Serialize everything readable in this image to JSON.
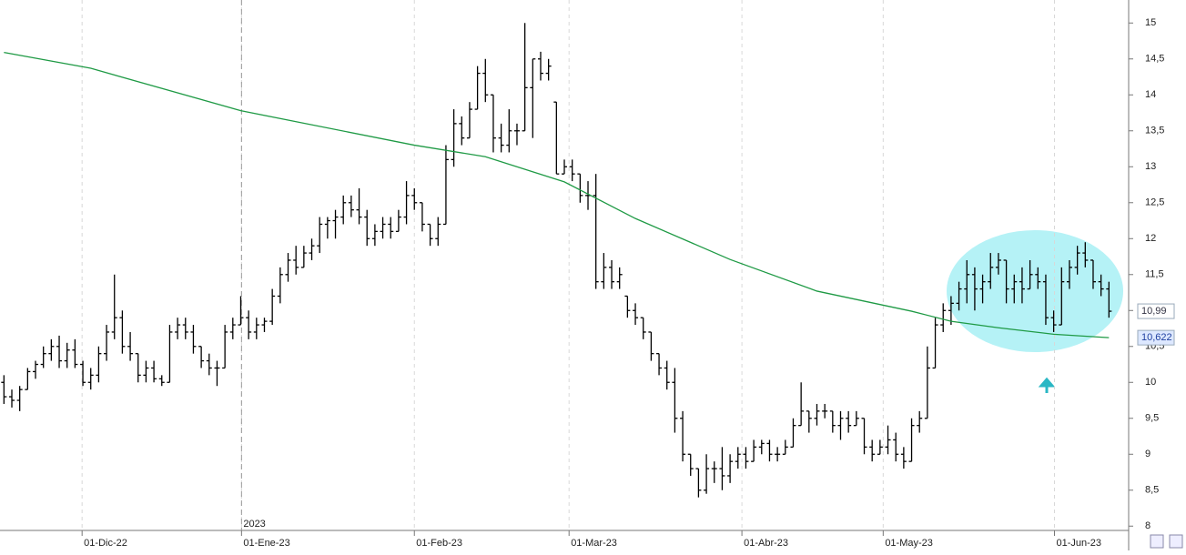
{
  "chart_data": {
    "type": "ohlc",
    "color": "#000000",
    "open": [
      10.0,
      9.8,
      9.75,
      9.9,
      10.15,
      10.25,
      10.4,
      10.5,
      10.3,
      10.45,
      10.25,
      10.0,
      10.1,
      10.4,
      10.7,
      10.9,
      10.5,
      10.4,
      10.1,
      10.2,
      10.05,
      10.0,
      10.7,
      10.8,
      10.7,
      10.5,
      10.3,
      10.2,
      10.2,
      10.7,
      10.8,
      10.9,
      10.7,
      10.8,
      10.85,
      11.2,
      11.5,
      11.7,
      11.6,
      11.8,
      11.9,
      12.2,
      12.25,
      12.3,
      12.5,
      12.4,
      12.3,
      12.0,
      12.1,
      12.2,
      12.1,
      12.3,
      12.6,
      12.5,
      12.2,
      12.0,
      12.2,
      13.1,
      13.6,
      13.4,
      13.8,
      14.3,
      14.0,
      13.4,
      13.3,
      13.5,
      13.5,
      14.1,
      14.5,
      14.3,
      13.9,
      12.9,
      13.0,
      12.9,
      12.6,
      12.6,
      11.4,
      11.6,
      11.4,
      11.2,
      11.0,
      10.9,
      10.7,
      10.4,
      10.2,
      10.0,
      9.5,
      9.0,
      8.8,
      8.5,
      8.8,
      8.8,
      8.7,
      8.9,
      9.0,
      8.9,
      9.1,
      9.15,
      9.0,
      9.0,
      9.1,
      9.4,
      9.6,
      9.5,
      9.6,
      9.6,
      9.4,
      9.5,
      9.4,
      9.5,
      9.1,
      9.0,
      9.1,
      9.2,
      9.0,
      8.9,
      9.4,
      9.5,
      10.2,
      10.8,
      11.0,
      11.1,
      11.3,
      11.5,
      11.3,
      11.4,
      11.6,
      11.7,
      11.3,
      11.4,
      11.3,
      11.5,
      11.4,
      10.9,
      10.8,
      11.4,
      11.6,
      11.8,
      11.7,
      11.4,
      11.3
    ],
    "high": [
      10.1,
      9.9,
      9.95,
      10.2,
      10.3,
      10.5,
      10.6,
      10.65,
      10.55,
      10.6,
      10.3,
      10.2,
      10.5,
      10.8,
      11.5,
      11.0,
      10.7,
      10.4,
      10.3,
      10.3,
      10.1,
      10.8,
      10.9,
      10.9,
      10.8,
      10.5,
      10.4,
      10.3,
      10.8,
      10.9,
      11.2,
      11.0,
      10.9,
      10.9,
      11.3,
      11.6,
      11.8,
      11.9,
      11.9,
      12.0,
      12.3,
      12.3,
      12.4,
      12.6,
      12.6,
      12.7,
      12.4,
      12.2,
      12.3,
      12.3,
      12.4,
      12.8,
      12.7,
      12.5,
      12.2,
      12.3,
      13.3,
      13.8,
      13.7,
      13.9,
      14.4,
      14.5,
      14.0,
      13.6,
      13.8,
      13.6,
      15.0,
      14.5,
      14.6,
      14.5,
      13.9,
      13.1,
      13.1,
      12.9,
      12.8,
      12.9,
      11.8,
      11.7,
      11.6,
      11.2,
      11.1,
      10.9,
      10.7,
      10.4,
      10.3,
      10.2,
      9.6,
      9.0,
      8.8,
      9.0,
      8.9,
      9.1,
      9.0,
      9.1,
      9.1,
      9.2,
      9.2,
      9.2,
      9.1,
      9.2,
      9.5,
      10.0,
      9.6,
      9.7,
      9.7,
      9.6,
      9.6,
      9.6,
      9.6,
      9.5,
      9.2,
      9.2,
      9.4,
      9.3,
      9.1,
      9.5,
      9.6,
      10.5,
      10.9,
      11.1,
      11.2,
      11.4,
      11.7,
      11.6,
      11.5,
      11.8,
      11.8,
      11.7,
      11.5,
      11.6,
      11.7,
      11.6,
      11.5,
      11.0,
      11.6,
      11.7,
      11.9,
      11.95,
      11.7,
      11.5,
      11.4
    ],
    "low": [
      9.7,
      9.65,
      9.6,
      9.9,
      10.05,
      10.2,
      10.3,
      10.2,
      10.2,
      10.2,
      9.95,
      9.9,
      10.0,
      10.3,
      10.6,
      10.4,
      10.3,
      10.0,
      10.0,
      10.0,
      9.95,
      10.0,
      10.6,
      10.6,
      10.4,
      10.2,
      10.1,
      9.95,
      10.2,
      10.6,
      10.8,
      10.6,
      10.6,
      10.7,
      10.8,
      11.1,
      11.4,
      11.5,
      11.6,
      11.7,
      11.8,
      12.0,
      12.0,
      12.2,
      12.3,
      12.2,
      11.9,
      11.9,
      12.0,
      12.0,
      12.1,
      12.2,
      12.4,
      12.1,
      11.9,
      11.9,
      12.2,
      13.0,
      13.3,
      13.4,
      13.8,
      13.9,
      13.2,
      13.2,
      13.2,
      13.3,
      13.5,
      13.4,
      14.2,
      14.2,
      12.9,
      12.9,
      12.8,
      12.5,
      12.4,
      11.3,
      11.3,
      11.3,
      11.3,
      10.9,
      10.8,
      10.6,
      10.3,
      10.1,
      9.9,
      9.3,
      8.9,
      8.7,
      8.4,
      8.45,
      8.6,
      8.5,
      8.6,
      8.8,
      8.8,
      8.9,
      9.0,
      8.9,
      8.9,
      9.0,
      9.1,
      9.4,
      9.3,
      9.4,
      9.5,
      9.3,
      9.2,
      9.3,
      9.4,
      9.0,
      8.9,
      9.0,
      9.0,
      8.9,
      8.8,
      8.9,
      9.3,
      9.5,
      10.2,
      10.7,
      10.8,
      11.0,
      11.1,
      11.0,
      11.1,
      11.3,
      11.5,
      11.1,
      11.1,
      11.1,
      11.3,
      11.3,
      10.8,
      10.7,
      10.8,
      11.3,
      11.5,
      11.6,
      11.3,
      11.2,
      10.9
    ],
    "close": [
      9.8,
      9.75,
      9.9,
      10.15,
      10.25,
      10.4,
      10.5,
      10.3,
      10.45,
      10.25,
      10.0,
      10.1,
      10.4,
      10.7,
      10.9,
      10.5,
      10.4,
      10.1,
      10.2,
      10.05,
      10.0,
      10.7,
      10.8,
      10.7,
      10.5,
      10.3,
      10.2,
      10.2,
      10.7,
      10.8,
      10.9,
      10.7,
      10.8,
      10.85,
      11.2,
      11.5,
      11.7,
      11.6,
      11.8,
      11.9,
      12.2,
      12.25,
      12.3,
      12.5,
      12.4,
      12.3,
      12.0,
      12.1,
      12.2,
      12.1,
      12.3,
      12.6,
      12.5,
      12.2,
      12.0,
      12.2,
      13.1,
      13.6,
      13.4,
      13.8,
      14.3,
      14.0,
      13.4,
      13.3,
      13.5,
      13.5,
      14.1,
      14.5,
      14.3,
      14.4,
      12.9,
      13.0,
      12.9,
      12.6,
      12.6,
      11.4,
      11.6,
      11.4,
      11.5,
      11.0,
      10.9,
      10.7,
      10.4,
      10.2,
      10.0,
      9.5,
      9.0,
      8.8,
      8.5,
      8.8,
      8.8,
      8.7,
      8.9,
      9.0,
      8.9,
      9.1,
      9.15,
      9.0,
      9.0,
      9.1,
      9.4,
      9.6,
      9.5,
      9.6,
      9.6,
      9.4,
      9.5,
      9.4,
      9.5,
      9.1,
      9.0,
      9.1,
      9.2,
      9.0,
      8.9,
      9.4,
      9.5,
      10.2,
      10.8,
      11.0,
      11.1,
      11.3,
      11.5,
      11.3,
      11.4,
      11.6,
      11.7,
      11.3,
      11.4,
      11.3,
      11.5,
      11.4,
      10.9,
      10.8,
      11.4,
      11.6,
      11.8,
      11.7,
      11.4,
      11.3,
      10.99
    ],
    "moving_average": {
      "color": "#1f9a45",
      "x": [
        0,
        11,
        30,
        52,
        61,
        71,
        80,
        92,
        103,
        115,
        120,
        126,
        133,
        140
      ],
      "values": [
        14.59,
        14.37,
        13.78,
        13.3,
        13.14,
        12.79,
        12.28,
        11.71,
        11.27,
        10.99,
        10.85,
        10.76,
        10.67,
        10.622
      ]
    },
    "xlim": [
      -0.5,
      142.5
    ],
    "xticks": [
      {
        "value": 9.9,
        "label": "01-Dic-22"
      },
      {
        "value": 30.1,
        "label": "01-Ene-23"
      },
      {
        "value": 52,
        "label": "01-Feb-23"
      },
      {
        "value": 71.6,
        "label": "01-Mar-23"
      },
      {
        "value": 93.5,
        "label": "01-Abr-23"
      },
      {
        "value": 111.4,
        "label": "01-May-23"
      },
      {
        "value": 133.1,
        "label": "01-Jun-23"
      }
    ],
    "year_marker": {
      "value": 30.1,
      "label": "2023"
    },
    "ylim": [
      7.94,
      15.32
    ],
    "yticks": [
      8,
      {
        "value": 8.5,
        "label": "8,5"
      },
      9,
      {
        "value": 9.5,
        "label": "9,5"
      },
      10,
      {
        "value": 10.5,
        "label": "10,5"
      },
      11,
      {
        "value": 11.5,
        "label": "11,5"
      },
      12,
      {
        "value": 12.5,
        "label": "12,5"
      },
      13,
      {
        "value": 13.5,
        "label": "13,5"
      },
      14,
      {
        "value": 14.5,
        "label": "14,5"
      },
      15
    ],
    "last_price": {
      "value": 10.99,
      "label": "10,99"
    },
    "last_average": {
      "value": 10.622,
      "label": "10,622"
    }
  }
}
